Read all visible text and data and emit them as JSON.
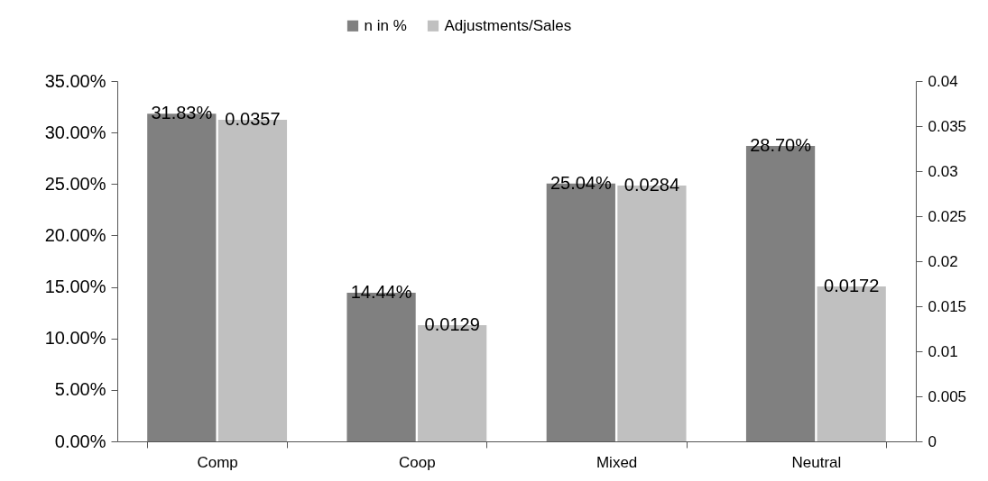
{
  "chart_data": {
    "type": "bar",
    "categories": [
      "Comp",
      "Coop",
      "Mixed",
      "Neutral"
    ],
    "series": [
      {
        "name": "n in %",
        "color": "#808080",
        "values": [
          31.83,
          14.44,
          25.04,
          28.7
        ],
        "value_labels": [
          "31.83%",
          "14.44%",
          "25.04%",
          "28.70%"
        ]
      },
      {
        "name": "Adjustments/Sales",
        "color": "#c0c0c0",
        "axis": "y2",
        "values": [
          0.0357,
          0.0129,
          0.0284,
          0.0172
        ],
        "value_labels": [
          "0.0357",
          "0.0129",
          "0.0284",
          "0.0172"
        ]
      }
    ],
    "ylim": [
      0,
      35
    ],
    "yticks": [
      {
        "value": 0,
        "label": "0.00%"
      },
      {
        "value": 5,
        "label": "5.00%"
      },
      {
        "value": 10,
        "label": "10.00%"
      },
      {
        "value": 15,
        "label": "15.00%"
      },
      {
        "value": 20,
        "label": "20.00%"
      },
      {
        "value": 25,
        "label": "25.00%"
      },
      {
        "value": 30,
        "label": "30.00%"
      },
      {
        "value": 35,
        "label": "35.00%"
      }
    ],
    "y2lim": [
      0,
      0.04
    ],
    "y2ticks": [
      0,
      0.005,
      0.01,
      0.015,
      0.02,
      0.025,
      0.03,
      0.035,
      0.04
    ],
    "grid": false,
    "legend": "top"
  }
}
